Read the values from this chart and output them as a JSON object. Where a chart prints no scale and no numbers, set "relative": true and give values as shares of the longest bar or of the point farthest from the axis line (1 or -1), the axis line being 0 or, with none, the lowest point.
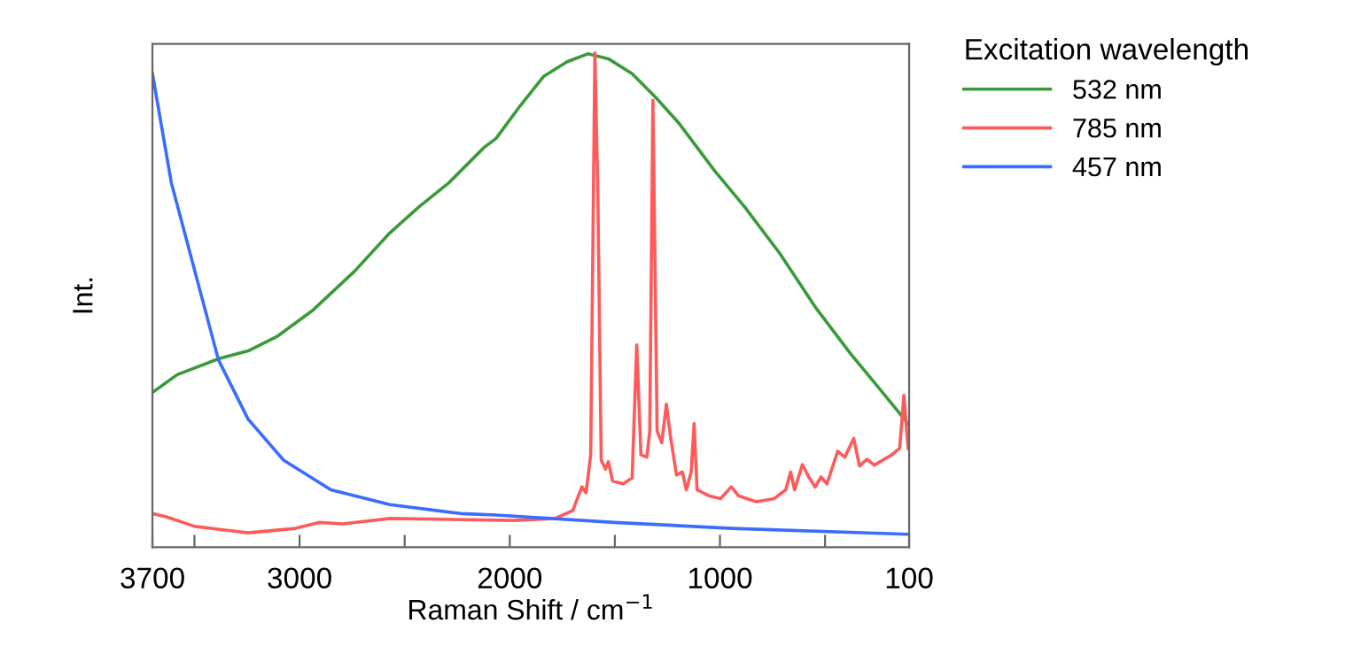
{
  "chart_data": {
    "type": "line",
    "xlabel": "Raman Shift / cm$^{−1}$",
    "ylabel": "Int.",
    "legend_title": "Excitation wavelength",
    "legend": "top right",
    "relative": true,
    "grid": false,
    "xlim": [
      3700,
      100
    ],
    "xticks": [
      3700,
      {
        "value": 3500,
        "label": null
      },
      3000,
      {
        "value": 2500,
        "label": null
      },
      2000,
      {
        "value": 1500,
        "label": null
      },
      1000,
      {
        "value": 500,
        "label": null
      },
      100
    ],
    "series": [
      {
        "name": "532 nm",
        "color": "#3a9a3a",
        "x": [
          3700,
          3582,
          3386,
          3245,
          3104,
          2935,
          2739,
          2570,
          2430,
          2290,
          2121,
          2065,
          1952,
          1840,
          1727,
          1629,
          1531,
          1418,
          1306,
          1194,
          1025,
          884,
          715,
          547,
          378,
          238,
          100
        ],
        "values": [
          0.313,
          0.349,
          0.381,
          0.397,
          0.427,
          0.48,
          0.558,
          0.636,
          0.689,
          0.737,
          0.809,
          0.827,
          0.892,
          0.952,
          0.982,
          0.998,
          0.988,
          0.958,
          0.91,
          0.857,
          0.761,
          0.689,
          0.594,
          0.486,
          0.391,
          0.319,
          0.247
        ]
      },
      {
        "name": "785 nm",
        "color": "#ff5a5a",
        "x": [
          3700,
          3638,
          3498,
          3245,
          3020,
          2908,
          2795,
          2570,
          1980,
          1784,
          1700,
          1657,
          1637,
          1615,
          1595,
          1581,
          1565,
          1545,
          1531,
          1511,
          1460,
          1418,
          1396,
          1376,
          1348,
          1334,
          1319,
          1299,
          1277,
          1255,
          1235,
          1207,
          1179,
          1160,
          1137,
          1123,
          1109,
          1053,
          997,
          946,
          912,
          828,
          743,
          687,
          664,
          645,
          608,
          575,
          547,
          519,
          491,
          440,
          406,
          364,
          336,
          300,
          266,
          182,
          145,
          125,
          105
        ],
        "values": [
          0.068,
          0.062,
          0.042,
          0.029,
          0.038,
          0.05,
          0.047,
          0.058,
          0.054,
          0.058,
          0.074,
          0.122,
          0.11,
          0.187,
          1,
          0.713,
          0.176,
          0.158,
          0.173,
          0.134,
          0.128,
          0.14,
          0.409,
          0.187,
          0.182,
          0.235,
          0.904,
          0.235,
          0.211,
          0.289,
          0.223,
          0.146,
          0.152,
          0.116,
          0.152,
          0.25,
          0.116,
          0.104,
          0.098,
          0.122,
          0.104,
          0.092,
          0.098,
          0.116,
          0.152,
          0.116,
          0.167,
          0.14,
          0.122,
          0.142,
          0.128,
          0.194,
          0.182,
          0.22,
          0.164,
          0.178,
          0.166,
          0.187,
          0.2,
          0.307,
          0.2
        ]
      },
      {
        "name": "457 nm",
        "color": "#3a6cff",
        "x": [
          3700,
          3610,
          3498,
          3386,
          3245,
          3076,
          2851,
          2570,
          2233,
          2065,
          1502,
          941,
          100
        ],
        "values": [
          0.958,
          0.737,
          0.558,
          0.379,
          0.259,
          0.176,
          0.116,
          0.086,
          0.068,
          0.065,
          0.05,
          0.038,
          0.026
        ]
      }
    ]
  }
}
